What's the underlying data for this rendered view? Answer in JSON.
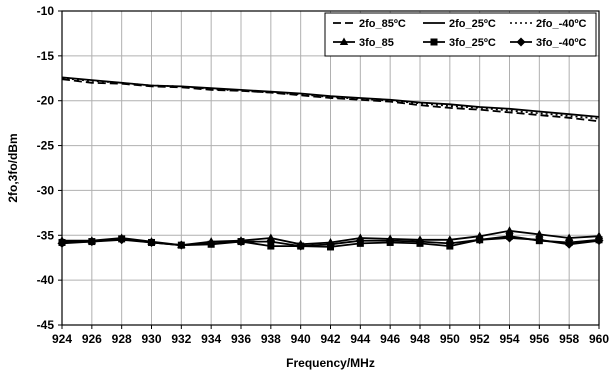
{
  "chart_data": {
    "type": "line",
    "title": "",
    "xlabel": "Frequency/MHz",
    "ylabel": "2fo,3fo/dBm",
    "xlim": [
      924,
      960
    ],
    "ylim": [
      -45,
      -10
    ],
    "x": [
      924,
      926,
      928,
      930,
      932,
      934,
      936,
      938,
      940,
      942,
      944,
      946,
      948,
      950,
      952,
      954,
      956,
      958,
      960
    ],
    "xticks": [
      "924",
      "926",
      "928",
      "930",
      "932",
      "934",
      "936",
      "938",
      "940",
      "942",
      "944",
      "946",
      "948",
      "950",
      "952",
      "954",
      "956",
      "958",
      "960"
    ],
    "yticks": [
      "-10",
      "-15",
      "-20",
      "-25",
      "-30",
      "-35",
      "-40",
      "-45"
    ],
    "grid": true,
    "legend_position": "top-right",
    "series": [
      {
        "name": "2fo_85ºC",
        "style": "dashed",
        "marker": "none",
        "values": [
          -17.6,
          -18.0,
          -18.1,
          -18.4,
          -18.5,
          -18.8,
          -18.9,
          -19.1,
          -19.4,
          -19.7,
          -19.9,
          -20.1,
          -20.5,
          -20.8,
          -21.0,
          -21.3,
          -21.6,
          -21.9,
          -22.3
        ]
      },
      {
        "name": "2fo_25ºC",
        "style": "solid",
        "marker": "none",
        "values": [
          -17.4,
          -17.7,
          -18.0,
          -18.3,
          -18.4,
          -18.6,
          -18.8,
          -19.0,
          -19.2,
          -19.5,
          -19.7,
          -19.9,
          -20.2,
          -20.4,
          -20.7,
          -20.9,
          -21.2,
          -21.5,
          -21.8
        ]
      },
      {
        "name": "2fo_-40ºC",
        "style": "dotted",
        "marker": "none",
        "values": [
          -17.5,
          -17.8,
          -18.0,
          -18.3,
          -18.4,
          -18.7,
          -18.9,
          -19.1,
          -19.3,
          -19.6,
          -19.8,
          -20.0,
          -20.3,
          -20.6,
          -20.8,
          -21.1,
          -21.4,
          -21.7,
          -22.0
        ]
      },
      {
        "name": "3fo_85",
        "style": "solid",
        "marker": "triangle",
        "values": [
          -35.6,
          -35.6,
          -35.3,
          -35.7,
          -36.1,
          -35.7,
          -35.6,
          -35.3,
          -36.0,
          -35.8,
          -35.3,
          -35.4,
          -35.5,
          -35.5,
          -35.1,
          -34.5,
          -34.9,
          -35.3,
          -35.1
        ]
      },
      {
        "name": "3fo_25ºC",
        "style": "solid",
        "marker": "square",
        "values": [
          -35.8,
          -35.7,
          -35.4,
          -35.8,
          -36.1,
          -36.0,
          -35.7,
          -36.2,
          -36.2,
          -36.3,
          -35.9,
          -35.8,
          -35.9,
          -36.2,
          -35.5,
          -35.1,
          -35.6,
          -35.8,
          -35.5
        ]
      },
      {
        "name": "3fo_-40ºC",
        "style": "solid",
        "marker": "diamond",
        "values": [
          -35.9,
          -35.7,
          -35.5,
          -35.8,
          -36.1,
          -35.9,
          -35.7,
          -35.7,
          -36.2,
          -36.0,
          -35.6,
          -35.6,
          -35.7,
          -35.9,
          -35.5,
          -35.3,
          -35.5,
          -36.0,
          -35.6
        ]
      }
    ]
  }
}
